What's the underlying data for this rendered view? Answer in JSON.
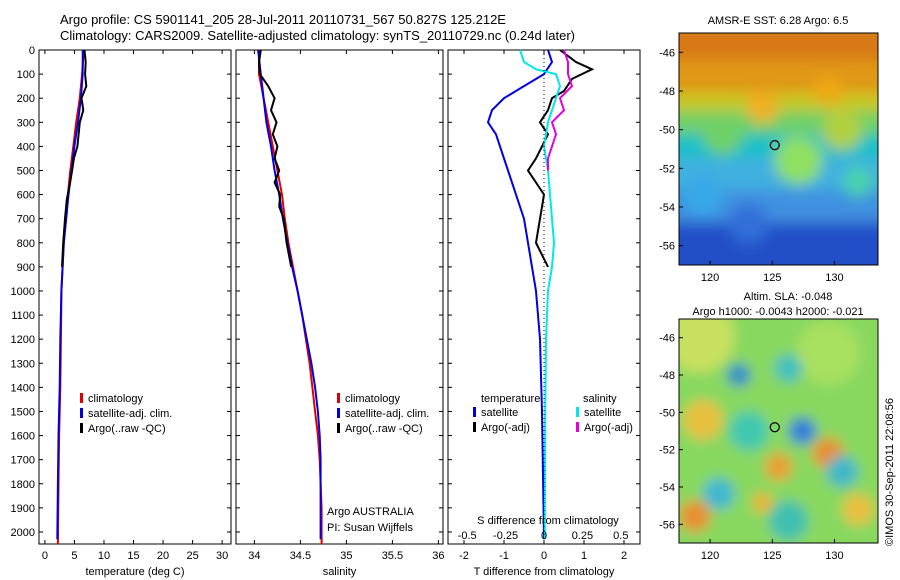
{
  "header": {
    "line1": "Argo profile: CS 5901141_205 28-Jul-2011 20110731_567 50.827S 125.212E",
    "line2": "Climatology: CARS2009. Satellite-adjusted climatology: synTS_20110729.nc (0.24d later)"
  },
  "colors": {
    "climatology": "#e00000",
    "satellite": "#0000e0",
    "argo": "#000000",
    "sat_s": "#00e8e8",
    "argo_s": "#e000e0"
  },
  "chart_data": [
    {
      "id": "temperature",
      "type": "line",
      "xlabel": "temperature (deg C)",
      "xticks": [
        0,
        5,
        10,
        15,
        20,
        25,
        30
      ],
      "xlim": [
        -1,
        31.5
      ],
      "yticks": [
        0,
        100,
        200,
        300,
        400,
        500,
        600,
        700,
        800,
        900,
        1000,
        1100,
        1200,
        1300,
        1400,
        1500,
        1600,
        1700,
        1800,
        1900,
        2000
      ],
      "ylim": [
        0,
        2050
      ],
      "legend": [
        "climatology",
        "satellite-adj. clim.",
        "Argo(..raw -QC)"
      ],
      "series": [
        {
          "name": "climatology",
          "color": "#e00000",
          "points": [
            [
              6.6,
              0
            ],
            [
              6.3,
              100
            ],
            [
              5.9,
              200
            ],
            [
              5.3,
              300
            ],
            [
              4.8,
              400
            ],
            [
              4.3,
              500
            ],
            [
              3.9,
              600
            ],
            [
              3.5,
              700
            ],
            [
              3.2,
              800
            ],
            [
              3.0,
              900
            ],
            [
              2.8,
              1000
            ],
            [
              2.7,
              1200
            ],
            [
              2.6,
              1400
            ],
            [
              2.4,
              1600
            ],
            [
              2.3,
              1800
            ],
            [
              2.2,
              2050
            ]
          ]
        },
        {
          "name": "satellite-adj. clim.",
          "color": "#0000e0",
          "points": [
            [
              6.4,
              0
            ],
            [
              6.4,
              100
            ],
            [
              6.1,
              200
            ],
            [
              5.6,
              300
            ],
            [
              5.0,
              400
            ],
            [
              4.5,
              500
            ],
            [
              4.0,
              600
            ],
            [
              3.6,
              700
            ],
            [
              3.2,
              800
            ],
            [
              3.0,
              900
            ],
            [
              2.8,
              1000
            ],
            [
              2.6,
              1200
            ],
            [
              2.5,
              1400
            ],
            [
              2.3,
              1600
            ],
            [
              2.2,
              1800
            ],
            [
              2.1,
              2030
            ]
          ]
        },
        {
          "name": "Argo(..raw -QC)",
          "color": "#000000",
          "points": [
            [
              6.7,
              0
            ],
            [
              6.9,
              50
            ],
            [
              6.8,
              100
            ],
            [
              7.0,
              150
            ],
            [
              6.2,
              200
            ],
            [
              6.5,
              250
            ],
            [
              5.9,
              300
            ],
            [
              5.5,
              400
            ],
            [
              4.9,
              450
            ],
            [
              4.6,
              500
            ],
            [
              4.2,
              560
            ],
            [
              3.7,
              620
            ],
            [
              3.4,
              700
            ],
            [
              3.1,
              800
            ],
            [
              2.9,
              900
            ]
          ]
        }
      ]
    },
    {
      "id": "salinity",
      "type": "line",
      "xlabel": "salinity",
      "xticks": [
        34,
        34.5,
        35,
        35.5,
        36
      ],
      "xlim": [
        33.8,
        36.05
      ],
      "legend": [
        "climatology",
        "satellite-adj. clim.",
        "Argo(..raw -QC)"
      ],
      "annotation": [
        "Argo AUSTRALIA",
        "PI: Susan Wijffels"
      ],
      "series": [
        {
          "name": "climatology",
          "color": "#e00000",
          "points": [
            [
              34.05,
              0
            ],
            [
              34.05,
              100
            ],
            [
              34.1,
              200
            ],
            [
              34.15,
              300
            ],
            [
              34.2,
              400
            ],
            [
              34.25,
              500
            ],
            [
              34.3,
              600
            ],
            [
              34.33,
              700
            ],
            [
              34.37,
              800
            ],
            [
              34.42,
              900
            ],
            [
              34.47,
              1000
            ],
            [
              34.52,
              1100
            ],
            [
              34.56,
              1200
            ],
            [
              34.6,
              1300
            ],
            [
              34.63,
              1400
            ],
            [
              34.66,
              1500
            ],
            [
              34.69,
              1600
            ],
            [
              34.71,
              1700
            ],
            [
              34.72,
              1800
            ],
            [
              34.73,
              1900
            ],
            [
              34.73,
              2050
            ]
          ]
        },
        {
          "name": "satellite-adj. clim.",
          "color": "#0000e0",
          "points": [
            [
              34.04,
              0
            ],
            [
              34.07,
              100
            ],
            [
              34.1,
              200
            ],
            [
              34.13,
              300
            ],
            [
              34.18,
              400
            ],
            [
              34.22,
              500
            ],
            [
              34.27,
              600
            ],
            [
              34.31,
              700
            ],
            [
              34.36,
              800
            ],
            [
              34.41,
              900
            ],
            [
              34.47,
              1000
            ],
            [
              34.52,
              1100
            ],
            [
              34.57,
              1200
            ],
            [
              34.62,
              1300
            ],
            [
              34.66,
              1400
            ],
            [
              34.69,
              1500
            ],
            [
              34.71,
              1600
            ],
            [
              34.72,
              1700
            ],
            [
              34.72,
              1800
            ],
            [
              34.72,
              2030
            ]
          ]
        },
        {
          "name": "Argo(..raw -QC)",
          "color": "#000000",
          "points": [
            [
              34.07,
              0
            ],
            [
              34.05,
              50
            ],
            [
              34.06,
              100
            ],
            [
              34.15,
              150
            ],
            [
              34.22,
              200
            ],
            [
              34.18,
              250
            ],
            [
              34.24,
              300
            ],
            [
              34.2,
              350
            ],
            [
              34.25,
              400
            ],
            [
              34.22,
              450
            ],
            [
              34.27,
              500
            ],
            [
              34.22,
              550
            ],
            [
              34.28,
              600
            ],
            [
              34.27,
              650
            ],
            [
              34.32,
              700
            ],
            [
              34.35,
              800
            ],
            [
              34.4,
              900
            ]
          ]
        }
      ]
    },
    {
      "id": "difference",
      "type": "line",
      "xlabel": "T difference from climatology",
      "xlabel_top": "S difference from climatology",
      "xticks": [
        -2,
        -1,
        0,
        1,
        2
      ],
      "xlim": [
        -2.4,
        2.4
      ],
      "s_ticks": [
        {
          "label": "-0.5",
          "t": -1.92
        },
        {
          "label": "-0.25",
          "t": -0.96
        },
        {
          "label": "0",
          "t": 0
        },
        {
          "label": "0.25",
          "t": 0.96
        },
        {
          "label": "0.5",
          "t": 1.92
        }
      ],
      "legend_left_title": "temperature",
      "legend_right_title": "salinity",
      "legend": [
        "satellite",
        "Argo(-adj)",
        "satellite",
        "Argo(-adj)"
      ],
      "series": [
        {
          "name": "T satellite",
          "color": "#0000e0",
          "points": [
            [
              0.1,
              0
            ],
            [
              0.2,
              50
            ],
            [
              0,
              100
            ],
            [
              -0.5,
              150
            ],
            [
              -1,
              200
            ],
            [
              -1.3,
              250
            ],
            [
              -1.4,
              300
            ],
            [
              -1.2,
              350
            ],
            [
              -1.1,
              400
            ],
            [
              -0.9,
              500
            ],
            [
              -0.7,
              600
            ],
            [
              -0.5,
              700
            ],
            [
              -0.4,
              800
            ],
            [
              -0.3,
              900
            ],
            [
              -0.2,
              1000
            ],
            [
              -0.1,
              1200
            ],
            [
              -0.05,
              1500
            ],
            [
              0,
              2030
            ]
          ]
        },
        {
          "name": "T Argo(-adj)",
          "color": "#000000",
          "points": [
            [
              0.4,
              0
            ],
            [
              0.8,
              50
            ],
            [
              1.2,
              80
            ],
            [
              0.7,
              120
            ],
            [
              0.5,
              170
            ],
            [
              0.2,
              200
            ],
            [
              0.1,
              250
            ],
            [
              -0.1,
              300
            ],
            [
              0.1,
              350
            ],
            [
              -0.2,
              450
            ],
            [
              -0.4,
              500
            ],
            [
              -0.2,
              550
            ],
            [
              0,
              600
            ],
            [
              -0.1,
              700
            ],
            [
              -0.2,
              800
            ],
            [
              0.1,
              900
            ]
          ]
        },
        {
          "name": "S satellite",
          "color": "#00e8e8",
          "points": [
            [
              -0.6,
              0
            ],
            [
              -0.5,
              50
            ],
            [
              -0.2,
              80
            ],
            [
              0.3,
              100
            ],
            [
              0.4,
              150
            ],
            [
              0.3,
              200
            ],
            [
              0.1,
              300
            ],
            [
              0,
              400
            ],
            [
              0.1,
              500
            ],
            [
              0.15,
              600
            ],
            [
              0.2,
              700
            ],
            [
              0.25,
              800
            ],
            [
              0.2,
              900
            ],
            [
              0.1,
              1000
            ],
            [
              0.05,
              1200
            ],
            [
              0.03,
              1500
            ],
            [
              0.02,
              2030
            ]
          ]
        },
        {
          "name": "S Argo(-adj)",
          "color": "#e000e0",
          "points": [
            [
              0.5,
              0
            ],
            [
              0.6,
              50
            ],
            [
              0.6,
              100
            ],
            [
              0.7,
              150
            ],
            [
              0.4,
              200
            ],
            [
              0.5,
              250
            ],
            [
              0.2,
              300
            ],
            [
              0.3,
              350
            ],
            [
              0.2,
              400
            ],
            [
              0.1,
              450
            ],
            [
              0.1,
              500
            ]
          ]
        }
      ]
    },
    {
      "id": "sst_map",
      "type": "heatmap",
      "title": "AMSR-E SST: 6.28 Argo: 6.5",
      "xticks": [
        120,
        125,
        130
      ],
      "yticks": [
        -46,
        -48,
        -50,
        -52,
        -54,
        -56
      ],
      "xlim": [
        117.5,
        133.5
      ],
      "ylim": [
        -57,
        -45
      ],
      "marker": {
        "lon": 125.2,
        "lat": -50.8
      }
    },
    {
      "id": "sla_map",
      "type": "heatmap",
      "title": "Altim. SLA: -0.048",
      "subtitle": "Argo h1000: -0.0043 h2000: -0.021",
      "xticks": [
        120,
        125,
        130
      ],
      "yticks": [
        -46,
        -48,
        -50,
        -52,
        -54,
        -56
      ],
      "xlim": [
        117.5,
        133.5
      ],
      "ylim": [
        -57,
        -45
      ],
      "marker": {
        "lon": 125.2,
        "lat": -50.8
      }
    }
  ],
  "axis": {
    "depth_ticks": [
      "0",
      "100",
      "200",
      "300",
      "400",
      "500",
      "600",
      "700",
      "800",
      "900",
      "1000",
      "1100",
      "1200",
      "1300",
      "1400",
      "1500",
      "1600",
      "1700",
      "1800",
      "1900",
      "2000"
    ]
  },
  "footer": {
    "stamp": "©IMOS 30-Sep-2011 22:08:56"
  }
}
